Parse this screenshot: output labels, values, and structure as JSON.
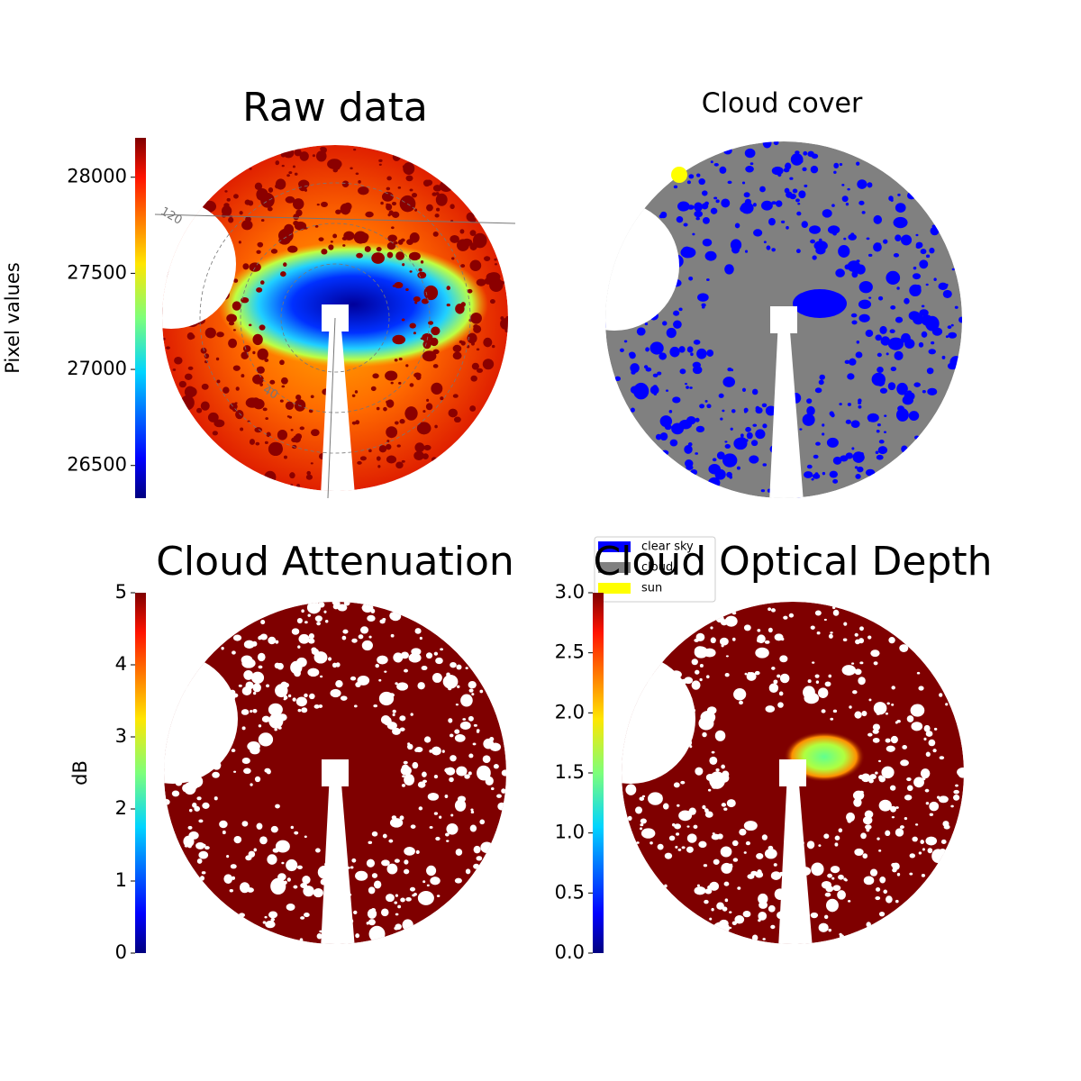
{
  "chart_data": [
    {
      "type": "image",
      "title": "Raw data",
      "ylabel": "Pixel values",
      "ylim": [
        26330,
        28205
      ],
      "yticks": [
        26500,
        27000,
        27500,
        28000
      ],
      "annotations": [
        "120",
        "40"
      ]
    },
    {
      "type": "image",
      "title": "Cloud cover",
      "legend": [
        {
          "label": "clear sky",
          "color": "#0000ff"
        },
        {
          "label": "cloud",
          "color": "#808080"
        },
        {
          "label": "sun",
          "color": "#ffff00"
        }
      ]
    },
    {
      "type": "image",
      "title": "Cloud Attenuation",
      "ylabel": "dB",
      "ylim": [
        0,
        5
      ],
      "yticks": [
        0,
        1,
        2,
        3,
        4,
        5
      ]
    },
    {
      "type": "image",
      "title": "Cloud Optical Depth",
      "ylim": [
        0,
        3
      ],
      "yticks": [
        {
          "value": 0,
          "label": "0.0"
        },
        0.5,
        {
          "value": 1,
          "label": "1.0"
        },
        1.5,
        {
          "value": 2,
          "label": "2.0"
        },
        2.5,
        {
          "value": 3,
          "label": "3.0"
        }
      ]
    }
  ]
}
